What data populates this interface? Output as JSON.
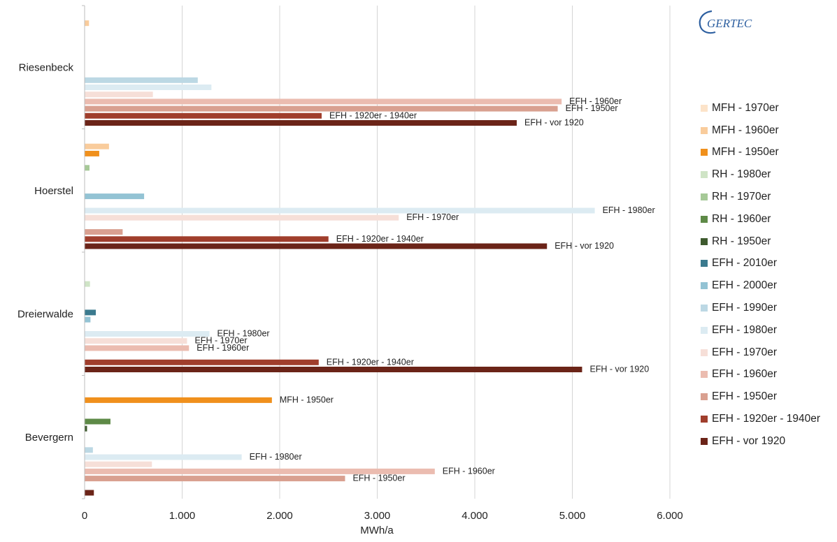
{
  "logo": {
    "text": "GERTEC"
  },
  "chart_data": {
    "type": "bar",
    "orientation": "horizontal",
    "xlabel": "MWh/a",
    "xlim": [
      0,
      6000
    ],
    "xticks": [
      0,
      1000,
      2000,
      3000,
      4000,
      5000,
      6000
    ],
    "xtick_labels": [
      "0",
      "1.000",
      "2.000",
      "3.000",
      "4.000",
      "5.000",
      "6.000"
    ],
    "grid": "vertical",
    "legend_position": "right",
    "categories": [
      "Riesenbeck",
      "Hoerstel",
      "Dreierwalde",
      "Bevergern"
    ],
    "series": [
      {
        "name": "MFH - 1970er",
        "color": "#fce3c9",
        "values": [
          0,
          0,
          0,
          0
        ]
      },
      {
        "name": "MFH - 1960er",
        "color": "#f9cc9c",
        "values": [
          45,
          250,
          0,
          0
        ]
      },
      {
        "name": "MFH - 1950er",
        "color": "#f0901c",
        "values": [
          0,
          150,
          0,
          1920
        ]
      },
      {
        "name": "RH - 1980er",
        "color": "#cfe4c6",
        "values": [
          0,
          0,
          55,
          0
        ]
      },
      {
        "name": "RH - 1970er",
        "color": "#a6c997",
        "values": [
          0,
          50,
          0,
          0
        ]
      },
      {
        "name": "RH - 1960er",
        "color": "#5e8a47",
        "values": [
          0,
          0,
          0,
          265
        ]
      },
      {
        "name": "RH - 1950er",
        "color": "#3e5a2e",
        "values": [
          0,
          0,
          0,
          25
        ]
      },
      {
        "name": "EFH - 2010er",
        "color": "#3b7a8e",
        "values": [
          0,
          0,
          115,
          0
        ]
      },
      {
        "name": "EFH - 2000er",
        "color": "#93c3d4",
        "values": [
          0,
          610,
          60,
          0
        ]
      },
      {
        "name": "EFH - 1990er",
        "color": "#bcd8e4",
        "values": [
          1160,
          0,
          0,
          85
        ]
      },
      {
        "name": "EFH - 1980er",
        "color": "#dcebf2",
        "values": [
          1300,
          5230,
          1280,
          1610
        ]
      },
      {
        "name": "EFH - 1970er",
        "color": "#f6dfd8",
        "values": [
          700,
          3220,
          1050,
          690
        ]
      },
      {
        "name": "EFH - 1960er",
        "color": "#ebbcb0",
        "values": [
          4890,
          0,
          1070,
          3590
        ]
      },
      {
        "name": "EFH - 1950er",
        "color": "#d9a090",
        "values": [
          4850,
          390,
          0,
          2670
        ]
      },
      {
        "name": "EFH - 1920er - 1940er",
        "color": "#a03e2c",
        "values": [
          2430,
          2500,
          2400,
          0
        ]
      },
      {
        "name": "EFH - vor 1920",
        "color": "#6b2418",
        "values": [
          4430,
          4740,
          5100,
          95
        ]
      }
    ],
    "data_labels": [
      {
        "category": "Riesenbeck",
        "series": "EFH - 1960er",
        "text": "EFH - 1960er"
      },
      {
        "category": "Riesenbeck",
        "series": "EFH - 1950er",
        "text": "EFH - 1950er"
      },
      {
        "category": "Riesenbeck",
        "series": "EFH - 1920er - 1940er",
        "text": "EFH - 1920er - 1940er"
      },
      {
        "category": "Riesenbeck",
        "series": "EFH - vor 1920",
        "text": "EFH - vor 1920"
      },
      {
        "category": "Hoerstel",
        "series": "EFH - 1980er",
        "text": "EFH - 1980er"
      },
      {
        "category": "Hoerstel",
        "series": "EFH - 1970er",
        "text": "EFH - 1970er"
      },
      {
        "category": "Hoerstel",
        "series": "EFH - 1920er - 1940er",
        "text": "EFH - 1920er - 1940er"
      },
      {
        "category": "Hoerstel",
        "series": "EFH - vor 1920",
        "text": "EFH - vor 1920"
      },
      {
        "category": "Dreierwalde",
        "series": "EFH - 1980er",
        "text": "EFH - 1980er"
      },
      {
        "category": "Dreierwalde",
        "series": "EFH - 1970er",
        "text": "EFH - 1970er"
      },
      {
        "category": "Dreierwalde",
        "series": "EFH - 1960er",
        "text": "EFH - 1960er"
      },
      {
        "category": "Dreierwalde",
        "series": "EFH - 1920er - 1940er",
        "text": "EFH - 1920er - 1940er"
      },
      {
        "category": "Dreierwalde",
        "series": "EFH - vor 1920",
        "text": "EFH - vor 1920"
      },
      {
        "category": "Bevergern",
        "series": "MFH - 1950er",
        "text": "MFH - 1950er"
      },
      {
        "category": "Bevergern",
        "series": "EFH - 1980er",
        "text": "EFH - 1980er"
      },
      {
        "category": "Bevergern",
        "series": "EFH - 1960er",
        "text": "EFH - 1960er"
      },
      {
        "category": "Bevergern",
        "series": "EFH - 1950er",
        "text": "EFH - 1950er"
      }
    ]
  }
}
